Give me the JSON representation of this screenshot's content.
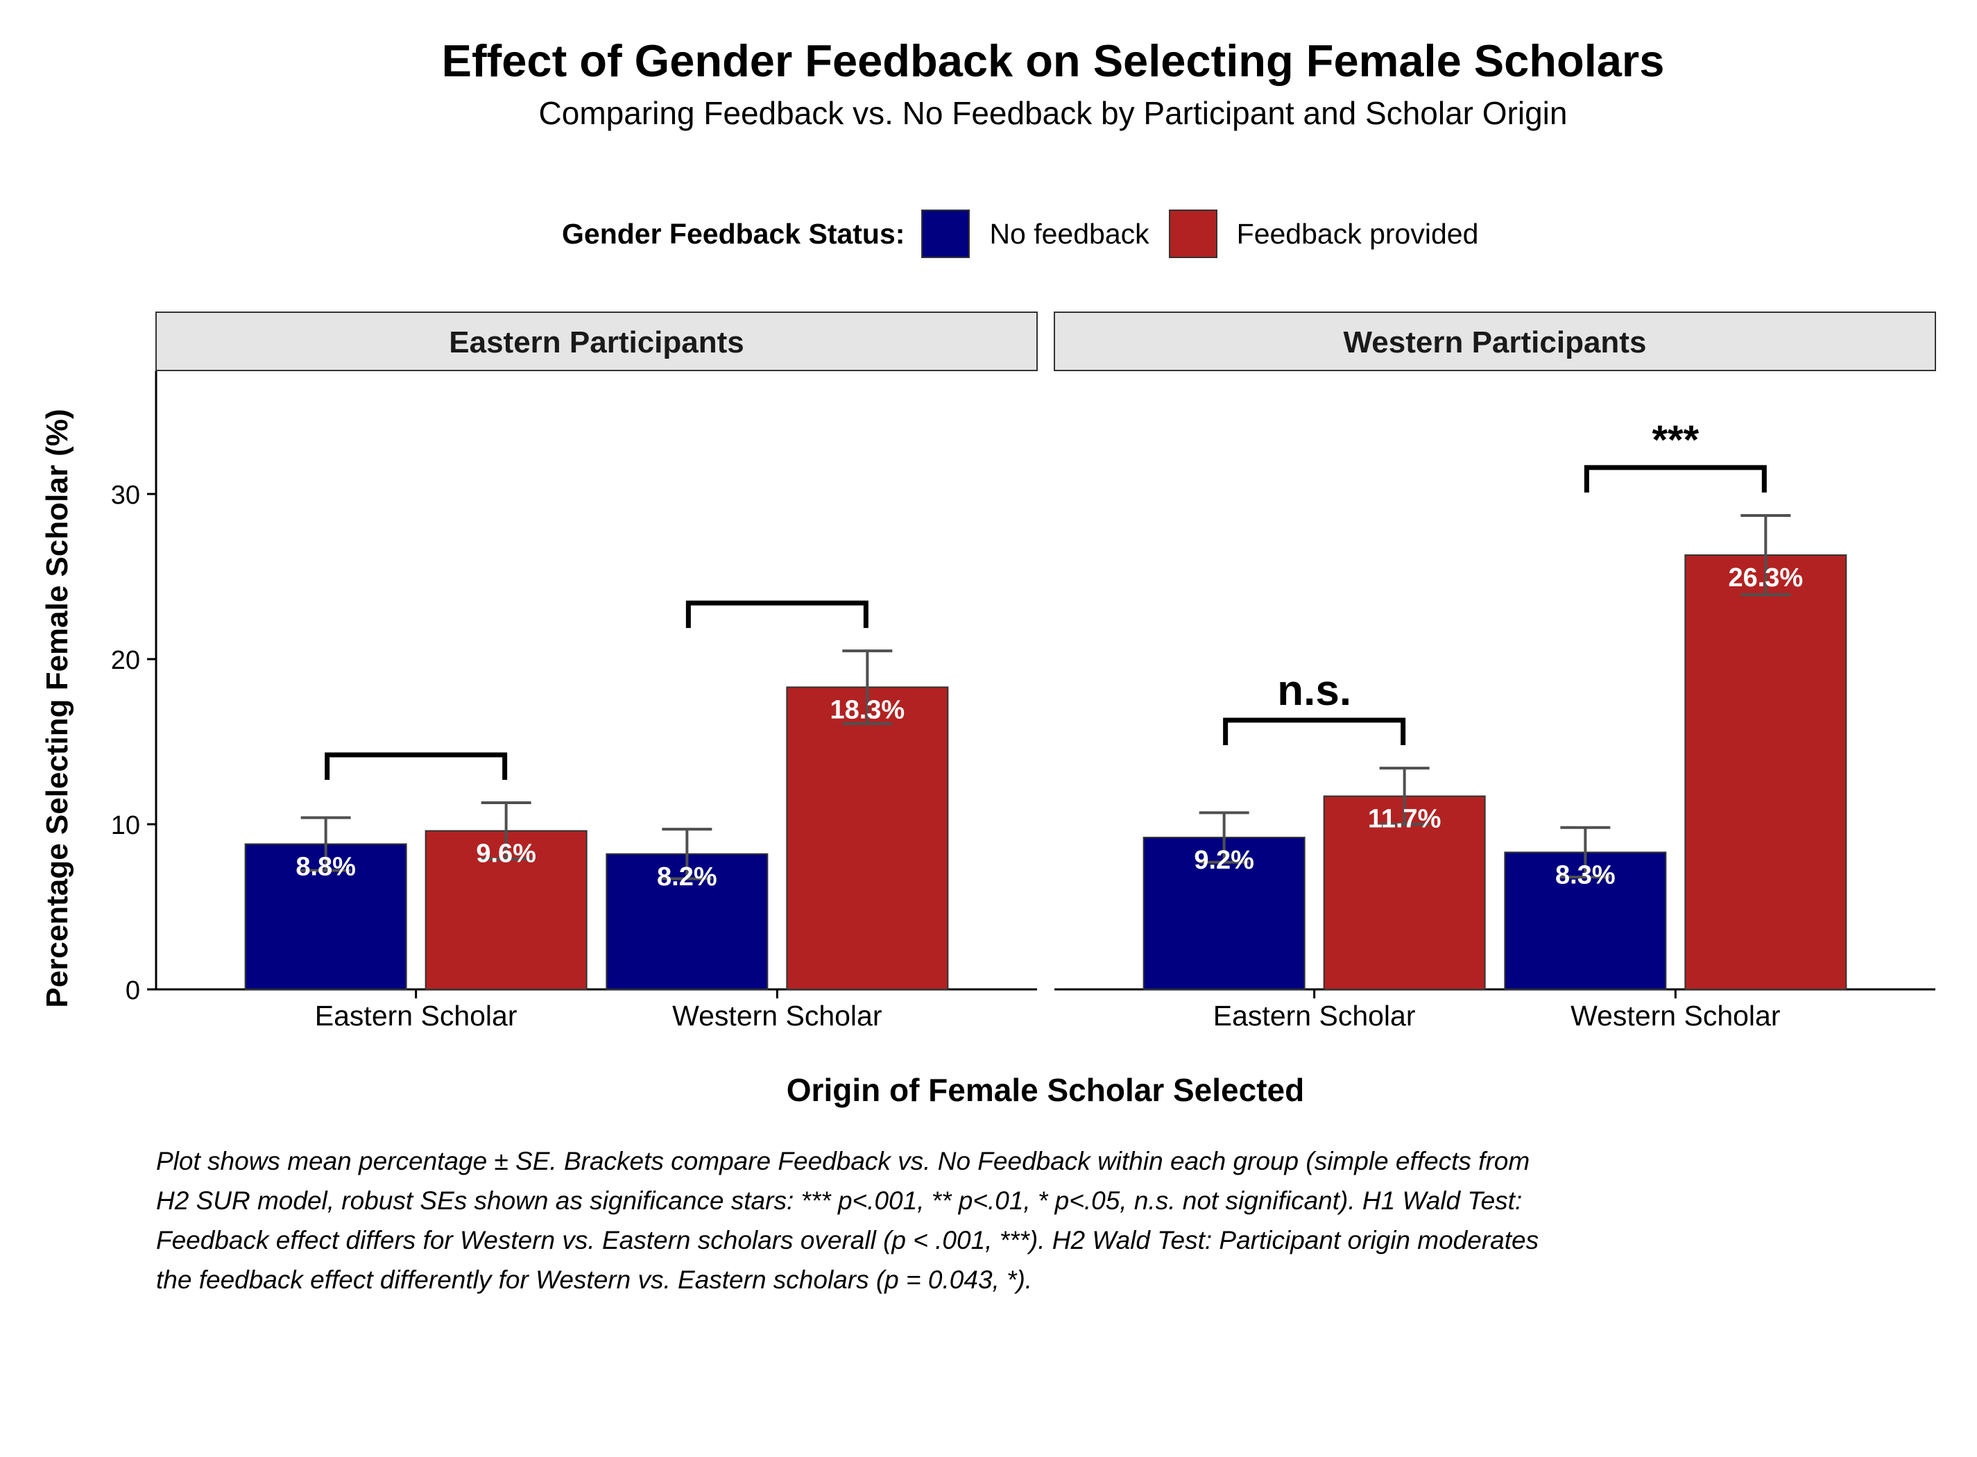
{
  "chart_data": {
    "type": "bar",
    "title": "Effect of Gender Feedback on Selecting Female Scholars",
    "subtitle": "Comparing Feedback vs. No Feedback by Participant and Scholar Origin",
    "xlabel": "Origin of Female Scholar Selected",
    "ylabel": "Percentage Selecting Female Scholar (%)",
    "ylim": [
      0,
      37.5
    ],
    "yticks": [
      0,
      10,
      20,
      30
    ],
    "legend": {
      "title": "Gender Feedback Status:",
      "placement": "top",
      "entries": [
        {
          "label": "No feedback",
          "color": "#000080"
        },
        {
          "label": "Feedback provided",
          "color": "#B22222"
        }
      ]
    },
    "categories": [
      "Eastern Scholar",
      "Western Scholar"
    ],
    "panels": [
      {
        "name": "Eastern Participants",
        "groups": [
          {
            "category": "Eastern Scholar",
            "no_feedback": {
              "value": 8.8,
              "se": 1.6,
              "label": "8.8%"
            },
            "feedback": {
              "value": 9.6,
              "se": 1.7,
              "label": "9.6%"
            },
            "significance": ""
          },
          {
            "category": "Western Scholar",
            "no_feedback": {
              "value": 8.2,
              "se": 1.5,
              "label": "8.2%"
            },
            "feedback": {
              "value": 18.3,
              "se": 2.2,
              "label": "18.3%"
            },
            "significance": ""
          }
        ]
      },
      {
        "name": "Western Participants",
        "groups": [
          {
            "category": "Eastern Scholar",
            "no_feedback": {
              "value": 9.2,
              "se": 1.5,
              "label": "9.2%"
            },
            "feedback": {
              "value": 11.7,
              "se": 1.7,
              "label": "11.7%"
            },
            "significance": "n.s."
          },
          {
            "category": "Western Scholar",
            "no_feedback": {
              "value": 8.3,
              "se": 1.5,
              "label": "8.3%"
            },
            "feedback": {
              "value": 26.3,
              "se": 2.4,
              "label": "26.3%"
            },
            "significance": "***"
          }
        ]
      }
    ],
    "caption": "Plot shows mean percentage ± SE. Brackets compare Feedback vs. No Feedback within each group (simple effects from H2 SUR model, robust SEs shown as significance stars: *** p<.001, ** p<.01, * p<.05, n.s. not significant). H1 Wald Test: Feedback effect differs for Western vs. Eastern scholars overall (p < .001, ***). H2 Wald Test: Participant origin moderates the feedback effect differently for Western vs. Eastern scholars (p = 0.043, *).",
    "colors": {
      "no_feedback": "#000080",
      "feedback": "#B22222",
      "errorbar": "#505050",
      "strip": "#E5E5E5"
    }
  }
}
